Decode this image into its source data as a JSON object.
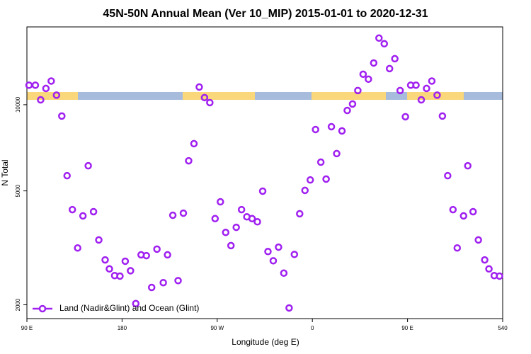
{
  "chart_data": {
    "type": "scatter",
    "title": "45N-50N Annual Mean (Ver 10_MIP)   2015-01-01 to 2020-12-31",
    "x_label": "Longitude (deg E)",
    "y_label": "N Total",
    "log_y": true,
    "legend_position": "lower left",
    "xlim": [
      90,
      540
    ],
    "xticks": [
      {
        "value": 90,
        "label": "90 E"
      },
      180,
      {
        "value": 270,
        "label": "90 W"
      },
      {
        "value": 360,
        "label": "0"
      },
      {
        "value": 450,
        "label": "90 E"
      },
      540
    ],
    "ylim": [
      1790,
      18700
    ],
    "yticks": [
      2000,
      5000,
      10000
    ],
    "x": [
      92,
      98,
      103,
      108,
      113,
      118,
      123,
      128,
      133,
      138,
      143,
      148,
      153,
      158,
      164,
      168,
      173,
      178,
      183,
      188,
      193,
      198,
      203,
      208,
      213,
      219,
      223,
      228,
      233,
      238,
      243,
      248,
      253,
      258,
      263,
      268,
      273,
      278,
      283,
      288,
      293,
      298,
      303,
      308,
      313,
      318,
      323,
      328,
      333,
      338,
      343,
      348,
      353,
      358,
      363,
      368,
      373,
      378,
      383,
      388,
      393,
      398,
      403,
      408,
      413,
      418,
      423,
      428,
      433,
      438,
      443,
      448,
      453,
      458,
      463,
      468,
      473,
      478,
      483,
      488,
      493,
      497,
      503,
      507,
      512,
      517,
      523,
      527,
      532,
      537
    ],
    "series": [
      {
        "name": "Land (Nadir&Glint) and Ocean (Glint)",
        "color": "#a020f0",
        "values": [
          11700,
          11700,
          10400,
          11400,
          12100,
          10800,
          9130,
          5650,
          4300,
          3160,
          4090,
          6120,
          4230,
          3370,
          2870,
          2670,
          2530,
          2520,
          2840,
          2630,
          2020,
          2990,
          2970,
          2300,
          3130,
          2390,
          2990,
          4110,
          2430,
          4180,
          6370,
          7310,
          11530,
          10590,
          10170,
          4000,
          4580,
          3580,
          3220,
          3730,
          4300,
          4060,
          4000,
          3900,
          4990,
          3070,
          2850,
          3180,
          2580,
          1950,
          3000,
          4160,
          5020,
          5460,
          8190,
          6300,
          5500,
          8380,
          6750,
          8100,
          9550,
          10060,
          11210,
          12780,
          12280,
          13990,
          17090,
          16330,
          13370,
          14480,
          11210,
          9080,
          11700,
          11700,
          10400,
          11400,
          12100,
          10800,
          9130,
          5650,
          4300,
          3160,
          4090,
          6120,
          4230,
          3370,
          2870,
          2670,
          2530,
          2520
        ]
      }
    ]
  }
}
